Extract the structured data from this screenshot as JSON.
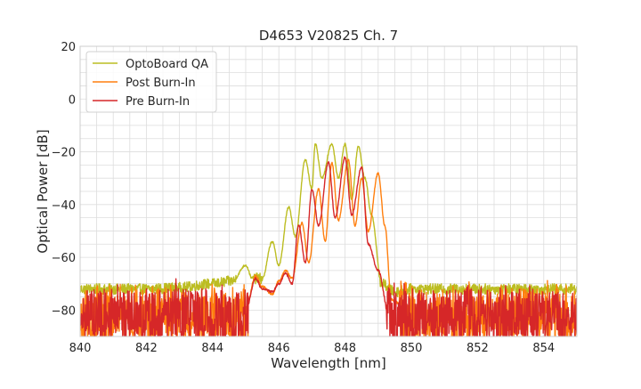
{
  "chart_data": {
    "type": "line",
    "title": "D4653 V20825 Ch. 7",
    "xlabel": "Wavelength [nm]",
    "ylabel": "Optical Power [dB]",
    "xlim": [
      840,
      855
    ],
    "ylim": [
      -90,
      20
    ],
    "xticks": [
      840,
      842,
      844,
      846,
      848,
      850,
      852,
      854
    ],
    "yticks": [
      -80,
      -60,
      -40,
      -20,
      0,
      20
    ],
    "xtick_labels": [
      "840",
      "842",
      "844",
      "846",
      "848",
      "850",
      "852",
      "854"
    ],
    "ytick_labels": [
      "−80",
      "−60",
      "−40",
      "−20",
      "0",
      "20"
    ],
    "grid": true,
    "legend_position": "top-left",
    "series": [
      {
        "name": "OptoBoard QA",
        "color": "#bcbd22",
        "noise_floor": -72,
        "points": [
          [
            840,
            -72
          ],
          [
            841,
            -72
          ],
          [
            842,
            -72
          ],
          [
            843,
            -71.5
          ],
          [
            844,
            -70
          ],
          [
            844.6,
            -69
          ],
          [
            845.0,
            -63
          ],
          [
            845.2,
            -68
          ],
          [
            845.5,
            -68
          ],
          [
            845.8,
            -54
          ],
          [
            846.0,
            -63
          ],
          [
            846.3,
            -41
          ],
          [
            846.5,
            -52
          ],
          [
            846.8,
            -23
          ],
          [
            847.0,
            -34
          ],
          [
            847.1,
            -17
          ],
          [
            847.3,
            -30
          ],
          [
            847.6,
            -17
          ],
          [
            847.8,
            -30
          ],
          [
            848.0,
            -17
          ],
          [
            848.2,
            -38
          ],
          [
            848.4,
            -18
          ],
          [
            848.6,
            -30
          ],
          [
            848.8,
            -44
          ],
          [
            849.1,
            -70
          ],
          [
            849.5,
            -73
          ],
          [
            850,
            -72
          ],
          [
            851,
            -72
          ],
          [
            852,
            -72
          ],
          [
            853,
            -72
          ],
          [
            854,
            -72
          ],
          [
            855,
            -72
          ]
        ]
      },
      {
        "name": "Post Burn-In",
        "color": "#ff7f0e",
        "noise_floor": -82,
        "points": [
          [
            840,
            -82
          ],
          [
            842,
            -82
          ],
          [
            844,
            -82
          ],
          [
            845.0,
            -80
          ],
          [
            845.3,
            -67
          ],
          [
            845.5,
            -71
          ],
          [
            845.8,
            -74
          ],
          [
            846.0,
            -69
          ],
          [
            846.2,
            -65
          ],
          [
            846.4,
            -68
          ],
          [
            846.7,
            -47
          ],
          [
            846.9,
            -62
          ],
          [
            847.2,
            -34
          ],
          [
            847.4,
            -54
          ],
          [
            847.6,
            -24
          ],
          [
            847.8,
            -46
          ],
          [
            848.1,
            -23
          ],
          [
            848.3,
            -48
          ],
          [
            848.5,
            -30
          ],
          [
            848.7,
            -50
          ],
          [
            849.0,
            -28
          ],
          [
            849.2,
            -48
          ],
          [
            849.4,
            -76
          ],
          [
            850,
            -82
          ],
          [
            851,
            -82
          ],
          [
            852,
            -82
          ],
          [
            853,
            -82
          ],
          [
            854,
            -82
          ],
          [
            855,
            -82
          ]
        ]
      },
      {
        "name": "Pre Burn-In",
        "color": "#d62728",
        "noise_floor": -82,
        "points": [
          [
            840,
            -82
          ],
          [
            842,
            -82
          ],
          [
            844,
            -82
          ],
          [
            845.0,
            -80
          ],
          [
            845.3,
            -68
          ],
          [
            845.5,
            -72
          ],
          [
            845.8,
            -73
          ],
          [
            846.0,
            -70
          ],
          [
            846.2,
            -66
          ],
          [
            846.4,
            -70
          ],
          [
            846.6,
            -48
          ],
          [
            846.8,
            -62
          ],
          [
            847.0,
            -34
          ],
          [
            847.2,
            -48
          ],
          [
            847.5,
            -24
          ],
          [
            847.7,
            -45
          ],
          [
            848.0,
            -22
          ],
          [
            848.2,
            -44
          ],
          [
            848.5,
            -26
          ],
          [
            848.7,
            -55
          ],
          [
            849.0,
            -65
          ],
          [
            849.3,
            -80
          ],
          [
            850,
            -82
          ],
          [
            851,
            -82
          ],
          [
            852,
            -82
          ],
          [
            853,
            -82
          ],
          [
            854,
            -82
          ],
          [
            855,
            -82
          ]
        ]
      }
    ]
  }
}
